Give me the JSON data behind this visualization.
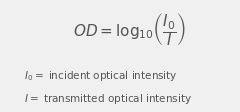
{
  "background_color": "#f0f0f0",
  "main_formula": "$\\mathit{OD} = \\log_{10}\\!\\left(\\dfrac{I_0}{I}\\right)$",
  "line1": "$\\mathit{I}_0 = $ incident optical intensity",
  "line2": "$\\mathit{I} = $ transmitted optical intensity",
  "main_formula_fontsize": 11,
  "sub_fontsize": 7.5,
  "text_color": "#555555",
  "fig_width": 2.4,
  "fig_height": 1.13,
  "dpi": 100
}
